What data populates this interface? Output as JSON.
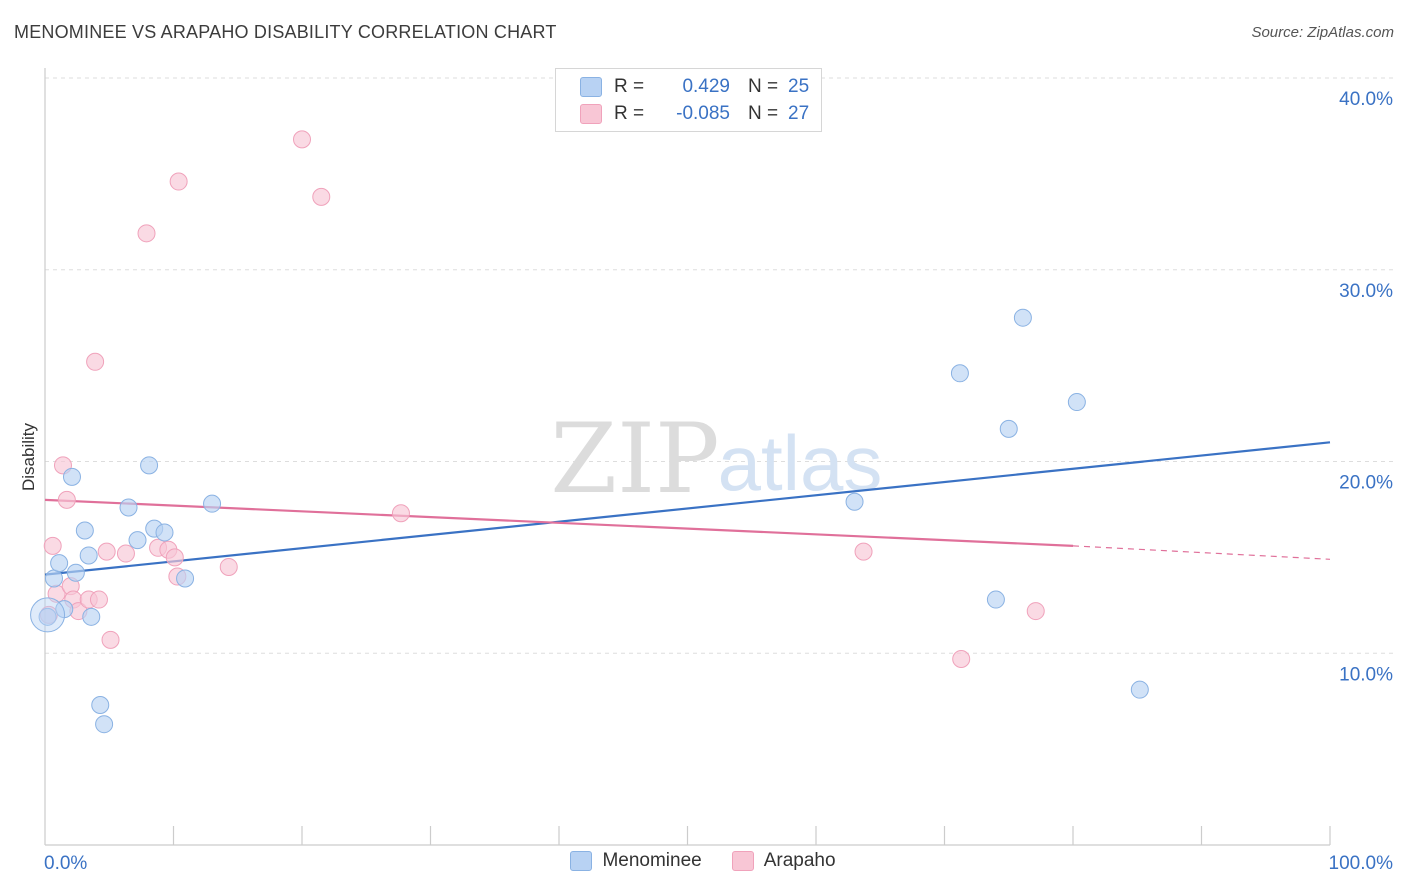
{
  "title": "MENOMINEE VS ARAPAHO DISABILITY CORRELATION CHART",
  "source": "Source: ZipAtlas.com",
  "watermark": {
    "zip": "ZIP",
    "atlas": "atlas"
  },
  "legend": {
    "rows": [
      {
        "r_label": "R =",
        "r_value": "0.429",
        "n_label": "N =",
        "n_value": "25"
      },
      {
        "r_label": "R =",
        "r_value": "-0.085",
        "n_label": "N =",
        "n_value": "27"
      }
    ]
  },
  "bottom_legend": {
    "series1": "Menominee",
    "series2": "Arapaho"
  },
  "colors": {
    "menominee_fill": "#b8d2f3",
    "menominee_stroke": "#8ab2e3",
    "menominee_line": "#3a72c4",
    "arapaho_fill": "#f8c6d5",
    "arapaho_stroke": "#f0a2bb",
    "arapaho_line": "#e0709a",
    "tick_label": "#3a72c4",
    "grid": "#dddddd"
  },
  "chart_data": {
    "type": "scatter",
    "title": "MENOMINEE VS ARAPAHO DISABILITY CORRELATION CHART",
    "xlabel": "",
    "ylabel": "Disability",
    "xlim": [
      0,
      100
    ],
    "ylim": [
      0,
      40
    ],
    "x_tick_labels": [
      "0.0%",
      "100.0%"
    ],
    "y_ticks": [
      10,
      20,
      30,
      40
    ],
    "y_tick_labels": [
      "10.0%",
      "20.0%",
      "30.0%",
      "40.0%"
    ],
    "grid": true,
    "legend_position": "top-center",
    "series": [
      {
        "name": "Menominee",
        "r": 0.429,
        "n": 25,
        "trend": {
          "x0": 0,
          "y0": 14.1,
          "x1": 100,
          "y1": 21.0
        },
        "points": [
          [
            0.2,
            11.9
          ],
          [
            0.7,
            13.9
          ],
          [
            1.1,
            14.7
          ],
          [
            1.5,
            12.3
          ],
          [
            2.1,
            19.2
          ],
          [
            2.4,
            14.2
          ],
          [
            3.1,
            16.4
          ],
          [
            3.4,
            15.1
          ],
          [
            3.6,
            11.9
          ],
          [
            4.3,
            7.3
          ],
          [
            4.6,
            6.3
          ],
          [
            6.5,
            17.6
          ],
          [
            7.2,
            15.9
          ],
          [
            8.1,
            19.8
          ],
          [
            8.5,
            16.5
          ],
          [
            9.3,
            16.3
          ],
          [
            10.9,
            13.9
          ],
          [
            13.0,
            17.8
          ],
          [
            63.0,
            17.9
          ],
          [
            71.2,
            24.6
          ],
          [
            74.0,
            12.8
          ],
          [
            75.0,
            21.7
          ],
          [
            76.1,
            27.5
          ],
          [
            80.3,
            23.1
          ],
          [
            85.2,
            8.1
          ]
        ]
      },
      {
        "name": "Arapaho",
        "r": -0.085,
        "n": 27,
        "trend": {
          "x0": 0,
          "y0": 18.0,
          "x1": 80,
          "y1": 15.6,
          "dash_x1": 100,
          "dash_y1": 14.9
        },
        "points": [
          [
            0.3,
            12.0
          ],
          [
            0.6,
            15.6
          ],
          [
            0.9,
            13.1
          ],
          [
            1.4,
            19.8
          ],
          [
            1.7,
            18.0
          ],
          [
            2.0,
            13.5
          ],
          [
            2.2,
            12.8
          ],
          [
            2.6,
            12.2
          ],
          [
            3.4,
            12.8
          ],
          [
            3.9,
            25.2
          ],
          [
            4.2,
            12.8
          ],
          [
            4.8,
            15.3
          ],
          [
            5.1,
            10.7
          ],
          [
            6.3,
            15.2
          ],
          [
            7.9,
            31.9
          ],
          [
            8.8,
            15.5
          ],
          [
            9.6,
            15.4
          ],
          [
            10.1,
            15.0
          ],
          [
            10.3,
            14.0
          ],
          [
            10.4,
            34.6
          ],
          [
            14.3,
            14.5
          ],
          [
            20.0,
            36.8
          ],
          [
            21.5,
            33.8
          ],
          [
            27.7,
            17.3
          ],
          [
            63.7,
            15.3
          ],
          [
            71.3,
            9.7
          ],
          [
            77.1,
            12.2
          ]
        ]
      }
    ]
  }
}
